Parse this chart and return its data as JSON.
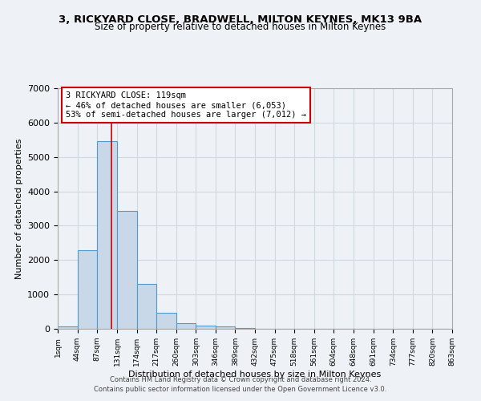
{
  "title": "3, RICKYARD CLOSE, BRADWELL, MILTON KEYNES, MK13 9BA",
  "subtitle": "Size of property relative to detached houses in Milton Keynes",
  "xlabel": "Distribution of detached houses by size in Milton Keynes",
  "ylabel": "Number of detached properties",
  "footer_line1": "Contains HM Land Registry data © Crown copyright and database right 2024.",
  "footer_line2": "Contains public sector information licensed under the Open Government Licence v3.0.",
  "bin_labels": [
    "1sqm",
    "44sqm",
    "87sqm",
    "131sqm",
    "174sqm",
    "217sqm",
    "260sqm",
    "303sqm",
    "346sqm",
    "389sqm",
    "432sqm",
    "475sqm",
    "518sqm",
    "561sqm",
    "604sqm",
    "648sqm",
    "691sqm",
    "734sqm",
    "777sqm",
    "820sqm",
    "863sqm"
  ],
  "bar_values": [
    80,
    2280,
    5470,
    3440,
    1310,
    460,
    160,
    85,
    60,
    30,
    0,
    0,
    0,
    0,
    0,
    0,
    0,
    0,
    0,
    0
  ],
  "bar_color": "#c8d8e8",
  "bar_edgecolor": "#5599cc",
  "grid_color": "#d0d8e0",
  "background_color": "#eef2f6",
  "annotation_box_text": "3 RICKYARD CLOSE: 119sqm\n← 46% of detached houses are smaller (6,053)\n53% of semi-detached houses are larger (7,012) →",
  "annotation_box_color": "#ffffff",
  "annotation_box_edgecolor": "#cc0000",
  "vline_x": 119,
  "vline_color": "#cc0000",
  "ylim": [
    0,
    7000
  ],
  "xlim_min": 1,
  "xlim_max": 863,
  "bin_starts": [
    1,
    44,
    87,
    131,
    174,
    217,
    260,
    303,
    346,
    389,
    432,
    475,
    518,
    561,
    604,
    648,
    691,
    734,
    777,
    820
  ],
  "bin_width": 43
}
